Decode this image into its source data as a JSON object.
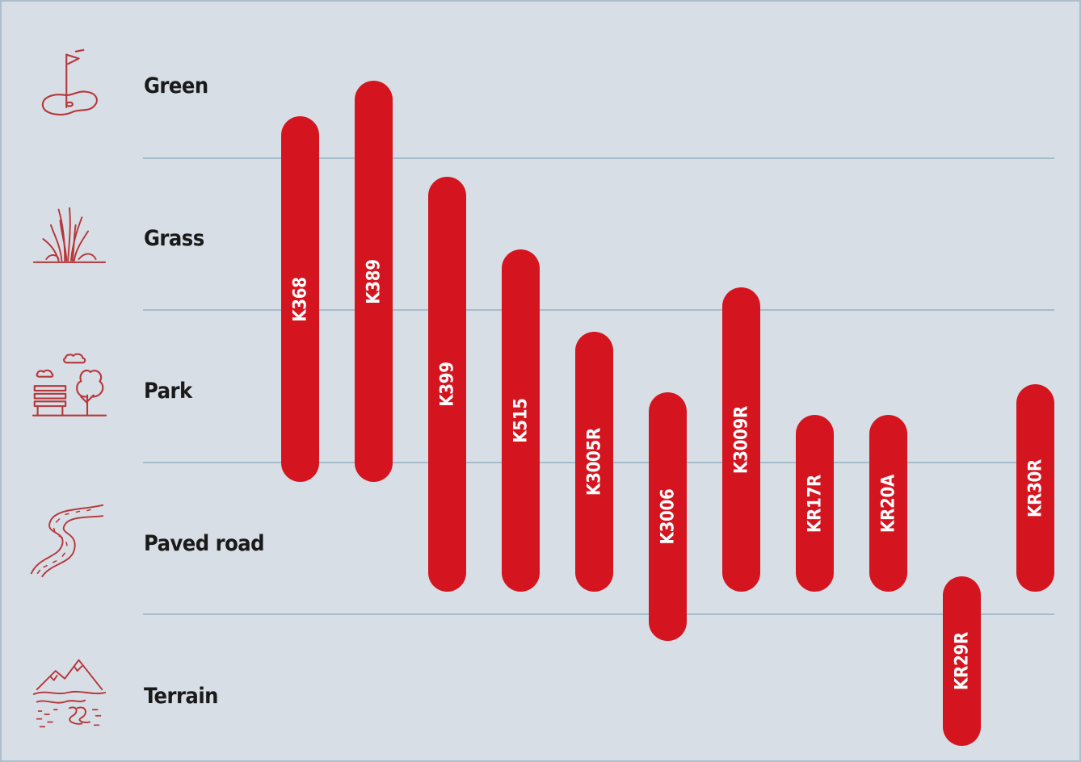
{
  "surfaces": [
    {
      "label": "Green",
      "icon": "golf-green-icon"
    },
    {
      "label": "Grass",
      "icon": "grass-icon"
    },
    {
      "label": "Park",
      "icon": "park-bench-tree-icon"
    },
    {
      "label": "Paved road",
      "icon": "winding-road-icon"
    },
    {
      "label": "Terrain",
      "icon": "mountain-terrain-icon"
    }
  ],
  "products": [
    {
      "label": "K368"
    },
    {
      "label": "K389"
    },
    {
      "label": "K399"
    },
    {
      "label": "K515"
    },
    {
      "label": "K3005R"
    },
    {
      "label": "K3006"
    },
    {
      "label": "K3009R"
    },
    {
      "label": "KR17R"
    },
    {
      "label": "KR20A"
    },
    {
      "label": "KR29R"
    },
    {
      "label": "KR30R"
    }
  ],
  "colors": {
    "background": "#d8dee5",
    "bar": "#d4151f",
    "divider": "#a6bccc",
    "icon": "#b5373a"
  }
}
